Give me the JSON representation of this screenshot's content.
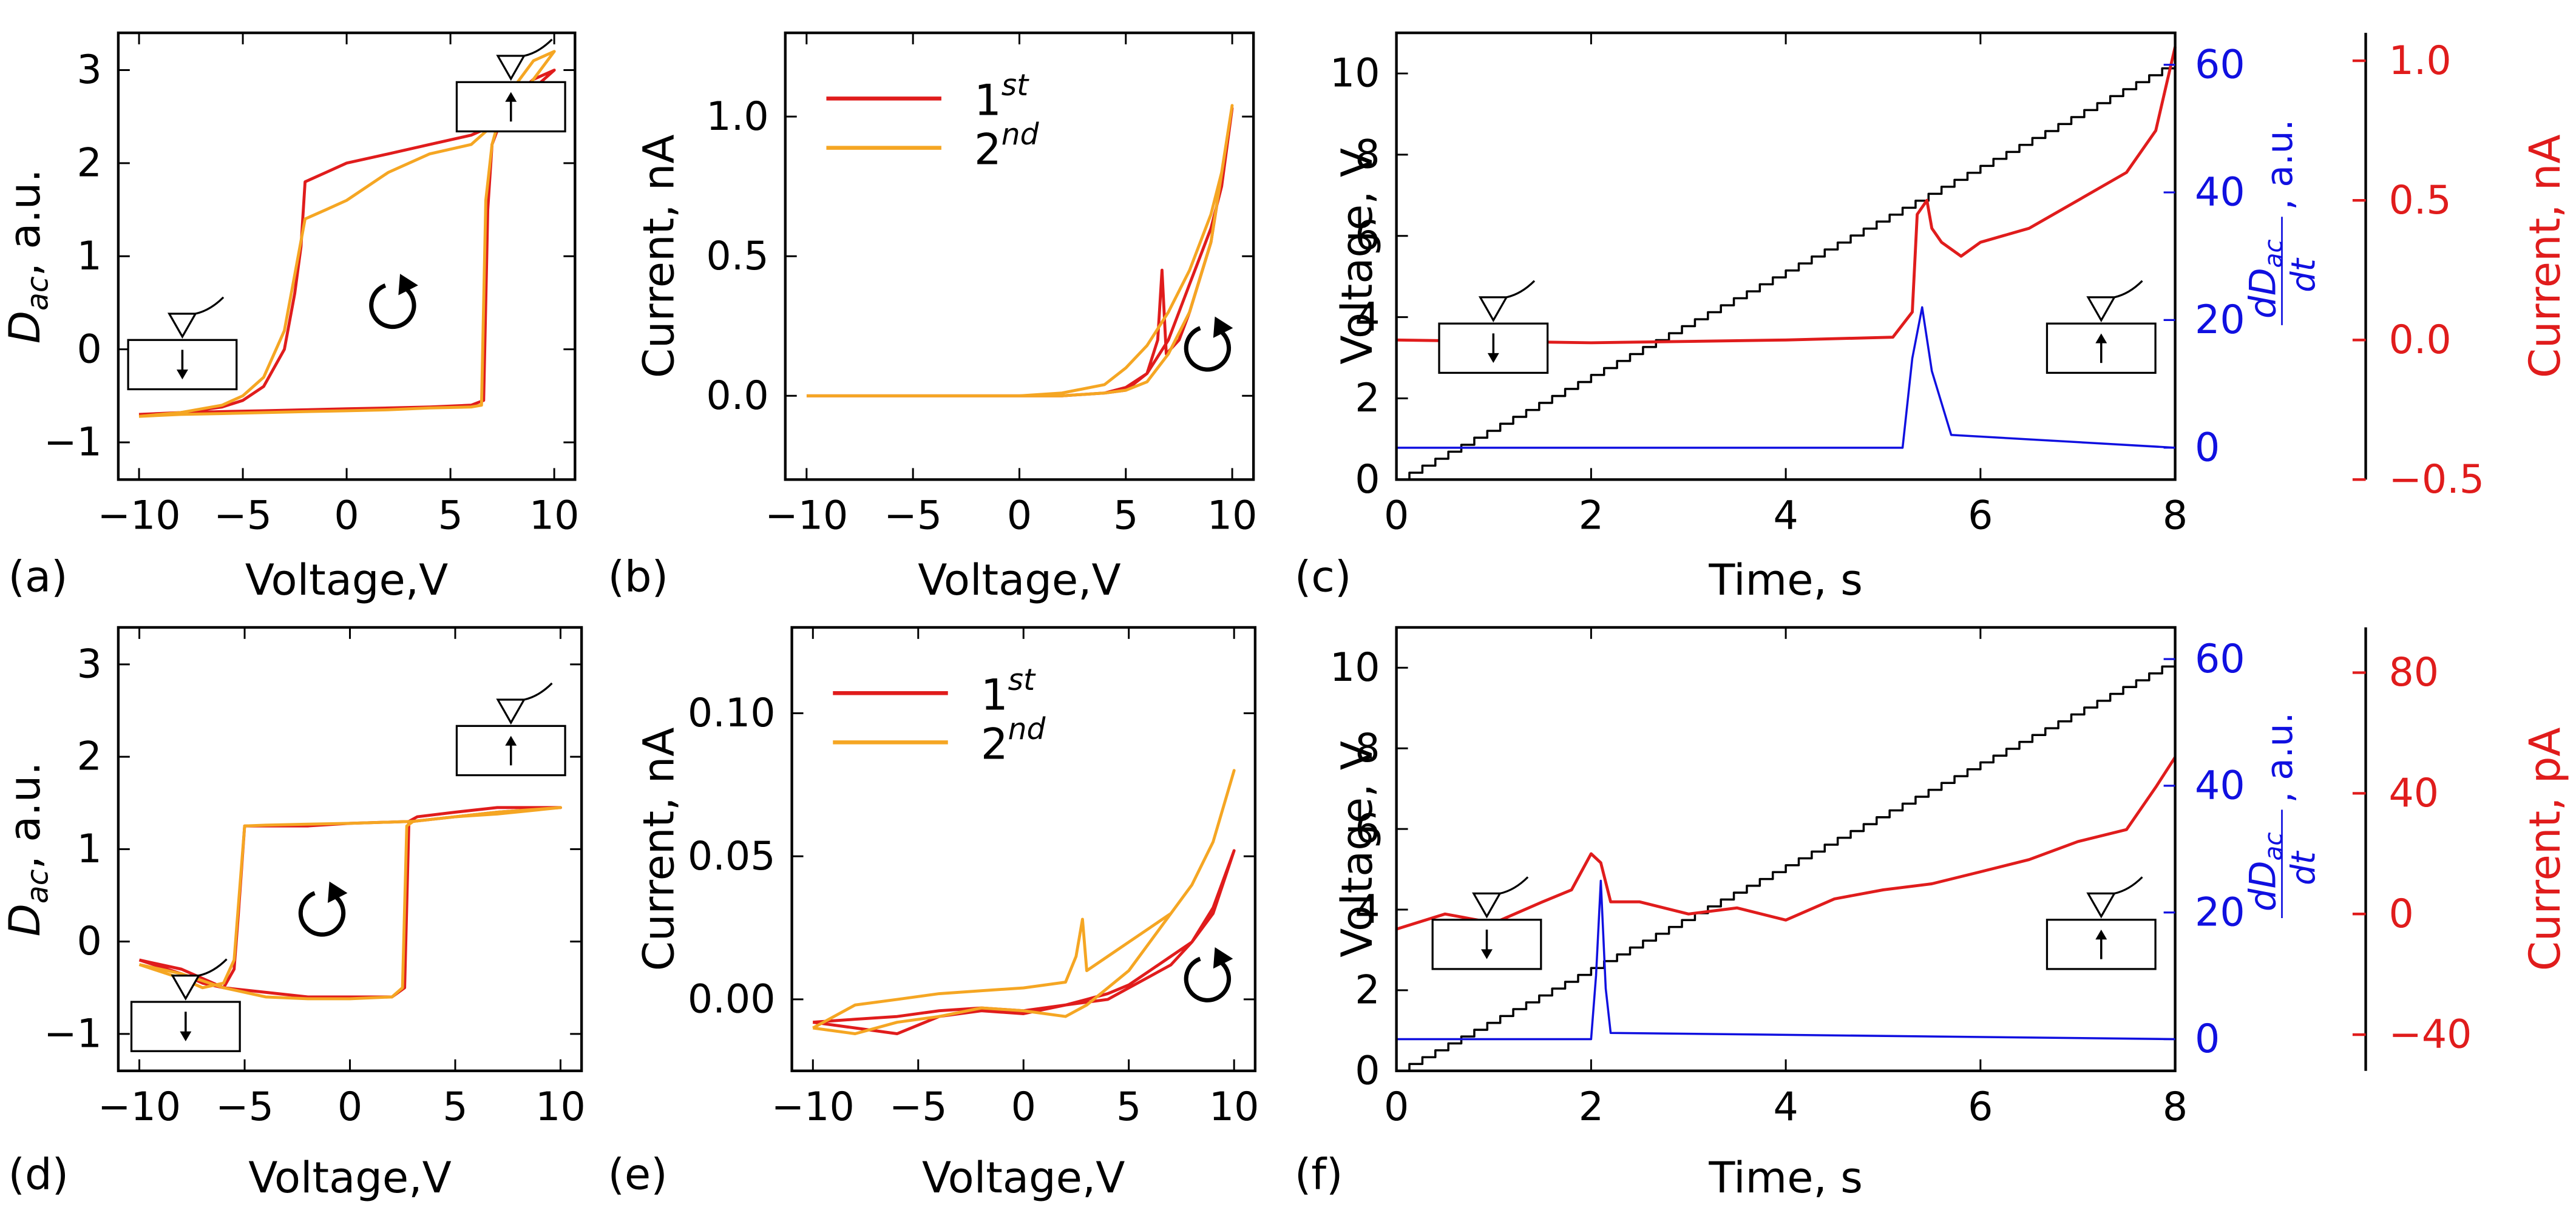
{
  "colors": {
    "first": "#e01c1c",
    "second": "#f5a623",
    "blue": "#1010e0",
    "red_axis": "#e01c1c",
    "black": "#000000"
  },
  "chart_data": [
    {
      "panel_label": "(a)",
      "type": "line",
      "xlabel": "Voltage,V",
      "ylabel_main": "D",
      "ylabel_sub": "ac",
      "ylabel_rest": ", a.u.",
      "xlim": [
        -11,
        11
      ],
      "ylim": [
        -1.4,
        3.4
      ],
      "xticks": [
        -10,
        -5,
        0,
        5,
        10
      ],
      "xtick_labels": [
        "−10",
        "−5",
        "0",
        "5",
        "10"
      ],
      "yticks": [
        -1,
        0,
        1,
        2,
        3
      ],
      "ytick_labels": [
        "−1",
        "0",
        "1",
        "2",
        "3"
      ],
      "series": [
        {
          "name": "1st",
          "color": "#e01c1c",
          "x": [
            -10,
            -8,
            -6,
            -4,
            -2,
            0,
            2,
            4,
            6,
            6.6,
            6.8,
            7,
            7.5,
            8,
            9,
            10,
            9,
            8,
            7,
            6,
            4,
            2,
            0,
            -1,
            -2,
            -2.2,
            -2.5,
            -3,
            -4,
            -5,
            -6,
            -8,
            -10
          ],
          "y": [
            -0.7,
            -0.68,
            -0.67,
            -0.66,
            -0.65,
            -0.64,
            -0.63,
            -0.62,
            -0.6,
            -0.55,
            1.5,
            2.2,
            2.5,
            2.7,
            2.9,
            3.0,
            2.8,
            2.6,
            2.4,
            2.3,
            2.2,
            2.1,
            2.0,
            1.9,
            1.8,
            1.1,
            0.6,
            0.0,
            -0.4,
            -0.55,
            -0.62,
            -0.68,
            -0.7
          ]
        },
        {
          "name": "2nd",
          "color": "#f5a623",
          "x": [
            -10,
            -8,
            -6,
            -4,
            -2,
            0,
            2,
            4,
            6,
            6.5,
            6.7,
            7,
            7.5,
            8,
            9,
            10,
            9,
            8,
            7,
            6,
            4,
            2,
            0,
            -1,
            -2,
            -2.5,
            -3,
            -4,
            -5,
            -6,
            -8,
            -10
          ],
          "y": [
            -0.72,
            -0.7,
            -0.69,
            -0.68,
            -0.67,
            -0.66,
            -0.65,
            -0.63,
            -0.62,
            -0.6,
            1.6,
            2.2,
            2.6,
            2.8,
            3.1,
            3.2,
            2.9,
            2.6,
            2.4,
            2.2,
            2.1,
            1.9,
            1.6,
            1.5,
            1.4,
            0.8,
            0.2,
            -0.3,
            -0.5,
            -0.6,
            -0.68,
            -0.72
          ]
        }
      ]
    },
    {
      "panel_label": "(b)",
      "type": "line",
      "xlabel": "Voltage,V",
      "ylabel": "Current, nA",
      "xlim": [
        -11,
        11
      ],
      "ylim": [
        -0.3,
        1.3
      ],
      "xticks": [
        -10,
        -5,
        0,
        5,
        10
      ],
      "xtick_labels": [
        "−10",
        "−5",
        "0",
        "5",
        "10"
      ],
      "yticks": [
        0,
        0.5,
        1.0
      ],
      "ytick_labels": [
        "0.0",
        "0.5",
        "1.0"
      ],
      "legend": [
        {
          "label": "1",
          "sup": "st",
          "color": "#e01c1c"
        },
        {
          "label": "2",
          "sup": "nd",
          "color": "#f5a623"
        }
      ],
      "series": [
        {
          "name": "1st",
          "color": "#e01c1c",
          "x": [
            -10,
            -6,
            -2,
            0,
            2,
            4,
            5,
            6,
            6.5,
            6.7,
            6.9,
            7.5,
            8,
            9,
            10,
            9.5,
            9,
            8,
            7,
            6,
            5,
            4,
            2,
            0,
            -5,
            -10
          ],
          "y": [
            0,
            0,
            0,
            0,
            0,
            0.01,
            0.03,
            0.08,
            0.2,
            0.45,
            0.15,
            0.2,
            0.3,
            0.55,
            1.03,
            0.75,
            0.6,
            0.4,
            0.2,
            0.08,
            0.02,
            0.01,
            0.0,
            0,
            0,
            0
          ]
        },
        {
          "name": "2nd",
          "color": "#f5a623",
          "x": [
            -10,
            -6,
            -2,
            0,
            2,
            4,
            5,
            6,
            7,
            8,
            9,
            10,
            9.5,
            9,
            8,
            7,
            6,
            5,
            4,
            2,
            0,
            -5,
            -10
          ],
          "y": [
            0,
            0,
            0,
            0,
            0,
            0.01,
            0.02,
            0.05,
            0.15,
            0.3,
            0.55,
            1.04,
            0.8,
            0.65,
            0.45,
            0.3,
            0.18,
            0.1,
            0.04,
            0.01,
            0,
            0,
            0
          ]
        }
      ]
    },
    {
      "panel_label": "(c)",
      "type": "line",
      "xlabel": "Time, s",
      "ylabel": "Voltage, V",
      "xlim": [
        0,
        8
      ],
      "ylim": [
        0,
        11
      ],
      "xticks": [
        0,
        2,
        4,
        6,
        8
      ],
      "xtick_labels": [
        "0",
        "2",
        "4",
        "6",
        "8"
      ],
      "yticks": [
        0,
        2,
        4,
        6,
        8,
        10
      ],
      "ytick_labels": [
        "0",
        "2",
        "4",
        "6",
        "8",
        "10"
      ],
      "y2": {
        "label_frac_num": "dD",
        "label_frac_num_sub": "ac",
        "label_frac_den": "dt",
        "label_rest": ", a.u.",
        "ticks": [
          0,
          20,
          40,
          60
        ],
        "tick_labels": [
          "0",
          "20",
          "40",
          "60"
        ],
        "ylim": [
          -5,
          65
        ]
      },
      "y3": {
        "label": "Current, nA",
        "ticks": [
          -0.5,
          0.0,
          0.5,
          1.0
        ],
        "tick_labels": [
          "−0.5",
          "0.0",
          "0.5",
          "1.0"
        ],
        "ylim": [
          -0.5,
          1.1
        ]
      },
      "series": [
        {
          "name": "voltage ramp",
          "color": "#000000",
          "x": [
            0,
            8
          ],
          "y": [
            0,
            10.3
          ]
        },
        {
          "name": "current",
          "color": "#e01c1c",
          "axis": "y3",
          "x": [
            0,
            2,
            4,
            5.1,
            5.3,
            5.35,
            5.45,
            5.5,
            5.6,
            5.8,
            6,
            6.5,
            7,
            7.5,
            7.8,
            8
          ],
          "y": [
            0.0,
            -0.01,
            0.0,
            0.01,
            0.1,
            0.45,
            0.5,
            0.4,
            0.35,
            0.3,
            0.35,
            0.4,
            0.5,
            0.6,
            0.75,
            1.05
          ]
        },
        {
          "name": "dDac/dt",
          "color": "#1010e0",
          "axis": "y2",
          "x": [
            0,
            5.2,
            5.3,
            5.4,
            5.5,
            5.7,
            8
          ],
          "y": [
            0,
            0,
            14,
            22,
            12,
            2,
            0
          ]
        }
      ]
    },
    {
      "panel_label": "(d)",
      "type": "line",
      "xlabel": "Voltage,V",
      "ylabel_main": "D",
      "ylabel_sub": "ac",
      "ylabel_rest": ", a.u.",
      "xlim": [
        -11,
        11
      ],
      "ylim": [
        -1.4,
        3.4
      ],
      "xticks": [
        -10,
        -5,
        0,
        5,
        10
      ],
      "xtick_labels": [
        "−10",
        "−5",
        "0",
        "5",
        "10"
      ],
      "yticks": [
        -1,
        0,
        1,
        2,
        3
      ],
      "ytick_labels": [
        "−1",
        "0",
        "1",
        "2",
        "3"
      ],
      "series": [
        {
          "name": "1st",
          "color": "#e01c1c",
          "x": [
            -10,
            -8,
            -6,
            -4,
            -2,
            0,
            2,
            2.6,
            2.8,
            3.2,
            5,
            7,
            10,
            7,
            5,
            3,
            0,
            -2,
            -4,
            -5,
            -5.3,
            -5.5,
            -6,
            -7,
            -8,
            -10
          ],
          "y": [
            -0.2,
            -0.3,
            -0.5,
            -0.55,
            -0.6,
            -0.6,
            -0.6,
            -0.5,
            1.3,
            1.35,
            1.4,
            1.45,
            1.45,
            1.4,
            1.35,
            1.3,
            1.28,
            1.25,
            1.25,
            1.25,
            0.3,
            -0.3,
            -0.5,
            -0.45,
            -0.35,
            -0.2
          ]
        },
        {
          "name": "2nd",
          "color": "#f5a623",
          "x": [
            -10,
            -8,
            -6,
            -4,
            -2,
            0,
            2,
            2.5,
            2.7,
            3,
            5,
            7,
            10,
            7,
            5,
            3,
            0,
            -2,
            -4,
            -5,
            -5.5,
            -6,
            -7,
            -8,
            -10
          ],
          "y": [
            -0.25,
            -0.35,
            -0.5,
            -0.6,
            -0.62,
            -0.62,
            -0.6,
            -0.5,
            1.25,
            1.3,
            1.35,
            1.4,
            1.45,
            1.38,
            1.35,
            1.3,
            1.28,
            1.27,
            1.26,
            1.25,
            -0.2,
            -0.45,
            -0.5,
            -0.4,
            -0.25
          ]
        }
      ]
    },
    {
      "panel_label": "(e)",
      "type": "line",
      "xlabel": "Voltage,V",
      "ylabel": "Current, nA",
      "xlim": [
        -11,
        11
      ],
      "ylim": [
        -0.025,
        0.13
      ],
      "xticks": [
        -10,
        -5,
        0,
        5,
        10
      ],
      "xtick_labels": [
        "−10",
        "−5",
        "0",
        "5",
        "10"
      ],
      "yticks": [
        0,
        0.05,
        0.1
      ],
      "ytick_labels": [
        "0.00",
        "0.05",
        "0.10"
      ],
      "legend": [
        {
          "label": "1",
          "sup": "st",
          "color": "#e01c1c"
        },
        {
          "label": "2",
          "sup": "nd",
          "color": "#f5a623"
        }
      ],
      "series": [
        {
          "name": "1st",
          "color": "#e01c1c",
          "x": [
            -10,
            -8,
            -6,
            -4,
            -2,
            0,
            2,
            3,
            4,
            5,
            6,
            7,
            8,
            9,
            10,
            9,
            8,
            7,
            6,
            5,
            4,
            2,
            0,
            -2,
            -4,
            -6,
            -8,
            -10
          ],
          "y": [
            -0.008,
            -0.01,
            -0.012,
            -0.006,
            -0.004,
            -0.005,
            -0.002,
            0.0,
            0.002,
            0.005,
            0.01,
            0.015,
            0.02,
            0.032,
            0.052,
            0.03,
            0.02,
            0.012,
            0.008,
            0.004,
            0.0,
            -0.002,
            -0.004,
            -0.003,
            -0.004,
            -0.006,
            -0.007,
            -0.008
          ]
        },
        {
          "name": "2nd",
          "color": "#f5a623",
          "x": [
            -10,
            -8,
            -6,
            -4,
            -2,
            0,
            2,
            2.5,
            2.8,
            3,
            4,
            5,
            6,
            7,
            8,
            9,
            10,
            9,
            8,
            7,
            6,
            5,
            4,
            3,
            2,
            0,
            -2,
            -4,
            -6,
            -8,
            -10
          ],
          "y": [
            -0.01,
            -0.002,
            0.0,
            0.002,
            0.003,
            0.004,
            0.006,
            0.015,
            0.028,
            0.01,
            0.015,
            0.02,
            0.025,
            0.03,
            0.04,
            0.055,
            0.08,
            0.055,
            0.04,
            0.03,
            0.02,
            0.01,
            0.004,
            -0.002,
            -0.006,
            -0.004,
            -0.003,
            -0.006,
            -0.008,
            -0.012,
            -0.01
          ]
        }
      ]
    },
    {
      "panel_label": "(f)",
      "type": "line",
      "xlabel": "Time, s",
      "ylabel": "Voltage, V",
      "xlim": [
        0,
        8
      ],
      "ylim": [
        0,
        11
      ],
      "xticks": [
        0,
        2,
        4,
        6,
        8
      ],
      "xtick_labels": [
        "0",
        "2",
        "4",
        "6",
        "8"
      ],
      "yticks": [
        0,
        2,
        4,
        6,
        8,
        10
      ],
      "ytick_labels": [
        "0",
        "2",
        "4",
        "6",
        "8",
        "10"
      ],
      "y2": {
        "label_frac_num": "dD",
        "label_frac_num_sub": "ac",
        "label_frac_den": "dt",
        "label_rest": ", a.u.",
        "ticks": [
          0,
          20,
          40,
          60
        ],
        "tick_labels": [
          "0",
          "20",
          "40",
          "60"
        ],
        "ylim": [
          -5,
          65
        ]
      },
      "y3": {
        "label": "Current, pA",
        "ticks": [
          -40,
          0,
          40,
          80
        ],
        "tick_labels": [
          "−40",
          "0",
          "40",
          "80"
        ],
        "ylim": [
          -52,
          95
        ]
      },
      "series": [
        {
          "name": "voltage ramp",
          "color": "#000000",
          "x": [
            0,
            8
          ],
          "y": [
            0,
            10.2
          ]
        },
        {
          "name": "current",
          "color": "#e01c1c",
          "axis": "y3",
          "x": [
            0,
            0.5,
            1,
            1.5,
            1.8,
            2.0,
            2.1,
            2.2,
            2.5,
            3,
            3.5,
            4,
            4.5,
            5,
            5.5,
            6,
            6.5,
            7,
            7.5,
            7.8,
            8
          ],
          "y": [
            -5,
            0,
            -3,
            4,
            8,
            20,
            17,
            4,
            4,
            0,
            2,
            -2,
            5,
            8,
            10,
            14,
            18,
            24,
            28,
            42,
            52
          ]
        },
        {
          "name": "dDac/dt",
          "color": "#1010e0",
          "axis": "y2",
          "x": [
            0,
            2.0,
            2.05,
            2.1,
            2.15,
            2.2,
            8
          ],
          "y": [
            0,
            0,
            10,
            25,
            8,
            1,
            0
          ]
        }
      ]
    }
  ]
}
